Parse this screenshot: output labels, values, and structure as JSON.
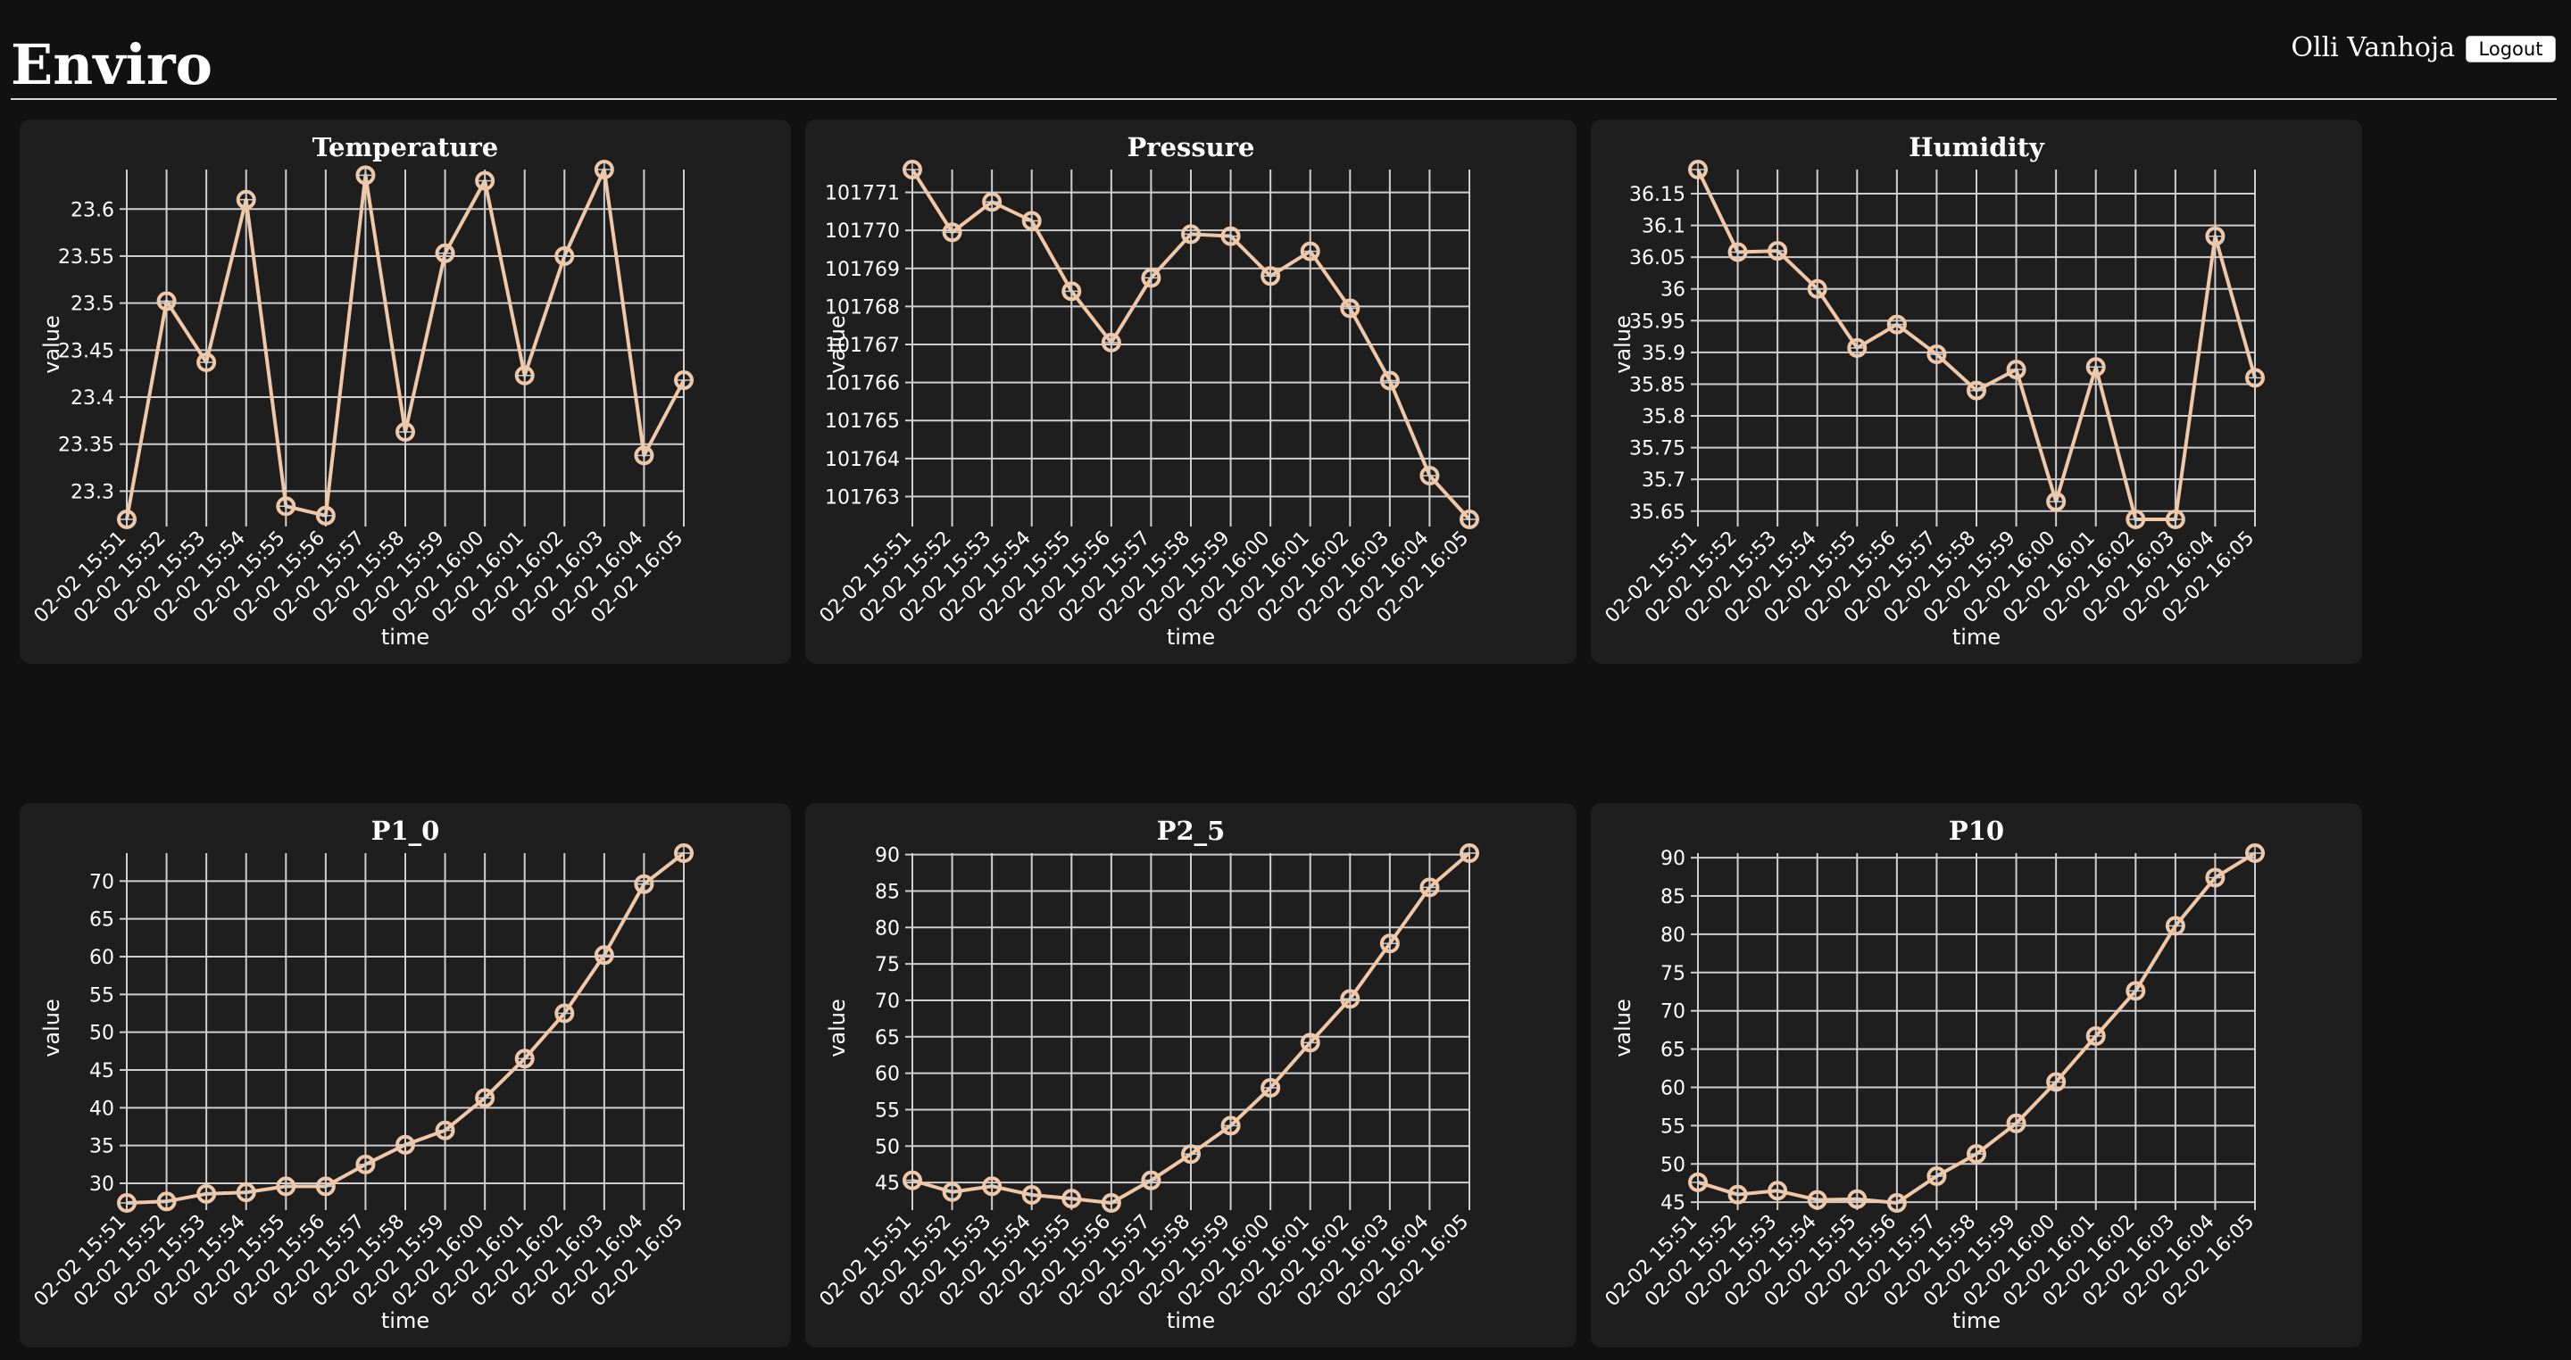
{
  "header": {
    "title": "Enviro",
    "user_name": "Olli Vanhoja",
    "logout_label": "Logout"
  },
  "chart_style": {
    "line_color": "#f0c8a8",
    "grid_color": "#cfcfcf",
    "card_color": "#1e1e1e",
    "background": "#111111"
  },
  "chart_data": [
    {
      "type": "line",
      "title": "Temperature",
      "xlabel": "time",
      "ylabel": "value",
      "categories": [
        "02-02 15:51",
        "02-02 15:52",
        "02-02 15:53",
        "02-02 15:54",
        "02-02 15:55",
        "02-02 15:56",
        "02-02 15:57",
        "02-02 15:58",
        "02-02 15:59",
        "02-02 16:00",
        "02-02 16:01",
        "02-02 16:02",
        "02-02 16:03",
        "02-02 16:04",
        "02-02 16:05"
      ],
      "values": [
        23.27,
        23.502,
        23.437,
        23.61,
        23.284,
        23.274,
        23.636,
        23.363,
        23.553,
        23.63,
        23.423,
        23.55,
        23.642,
        23.338,
        23.418
      ],
      "ylim": [
        23.27,
        23.642
      ],
      "yticks": [
        23.3,
        23.35,
        23.4,
        23.45,
        23.5,
        23.55,
        23.6
      ],
      "ytick_labels": [
        "23.3",
        "23.35",
        "23.4",
        "23.45",
        "23.5",
        "23.55",
        "23.6"
      ],
      "grid": true
    },
    {
      "type": "line",
      "title": "Pressure",
      "xlabel": "time",
      "ylabel": "value",
      "categories": [
        "02-02 15:51",
        "02-02 15:52",
        "02-02 15:53",
        "02-02 15:54",
        "02-02 15:55",
        "02-02 15:56",
        "02-02 15:57",
        "02-02 15:58",
        "02-02 15:59",
        "02-02 16:00",
        "02-02 16:01",
        "02-02 16:02",
        "02-02 16:03",
        "02-02 16:04",
        "02-02 16:05"
      ],
      "values": [
        101771.6,
        101769.95,
        101770.75,
        101770.25,
        101768.4,
        101767.05,
        101768.75,
        101769.9,
        101769.85,
        101768.8,
        101769.45,
        101767.95,
        101766.05,
        101763.55,
        101762.4
      ],
      "ylim": [
        101762.4,
        101771.6
      ],
      "yticks": [
        101763,
        101764,
        101765,
        101766,
        101767,
        101768,
        101769,
        101770,
        101771
      ],
      "ytick_labels": [
        "101763",
        "101764",
        "101765",
        "101766",
        "101767",
        "101768",
        "101769",
        "101770",
        "101771"
      ],
      "grid": true
    },
    {
      "type": "line",
      "title": "Humidity",
      "xlabel": "time",
      "ylabel": "value",
      "categories": [
        "02-02 15:51",
        "02-02 15:52",
        "02-02 15:53",
        "02-02 15:54",
        "02-02 15:55",
        "02-02 15:56",
        "02-02 15:57",
        "02-02 15:58",
        "02-02 15:59",
        "02-02 16:00",
        "02-02 16:01",
        "02-02 16:02",
        "02-02 16:03",
        "02-02 16:04",
        "02-02 16:05"
      ],
      "values": [
        36.188,
        36.058,
        36.06,
        36.0,
        35.907,
        35.944,
        35.897,
        35.84,
        35.873,
        35.665,
        35.877,
        35.637,
        35.637,
        36.083,
        35.86
      ],
      "ylim": [
        35.637,
        36.188
      ],
      "yticks": [
        35.65,
        35.7,
        35.75,
        35.8,
        35.85,
        35.9,
        35.95,
        36.0,
        36.05,
        36.1,
        36.15
      ],
      "ytick_labels": [
        "35.65",
        "35.7",
        "35.75",
        "35.8",
        "35.85",
        "35.9",
        "35.95",
        "36",
        "36.05",
        "36.1",
        "36.15"
      ],
      "grid": true
    },
    {
      "type": "line",
      "title": "P1_0",
      "xlabel": "time",
      "ylabel": "value",
      "categories": [
        "02-02 15:51",
        "02-02 15:52",
        "02-02 15:53",
        "02-02 15:54",
        "02-02 15:55",
        "02-02 15:56",
        "02-02 15:57",
        "02-02 15:58",
        "02-02 15:59",
        "02-02 16:00",
        "02-02 16:01",
        "02-02 16:02",
        "02-02 16:03",
        "02-02 16:04",
        "02-02 16:05"
      ],
      "values": [
        27.4,
        27.6,
        28.6,
        28.8,
        29.6,
        29.6,
        32.5,
        35.1,
        37.0,
        41.3,
        46.5,
        52.5,
        60.2,
        69.6,
        73.7
      ],
      "ylim": [
        27.4,
        73.7
      ],
      "yticks": [
        30,
        35,
        40,
        45,
        50,
        55,
        60,
        65,
        70
      ],
      "ytick_labels": [
        "30",
        "35",
        "40",
        "45",
        "50",
        "55",
        "60",
        "65",
        "70"
      ],
      "grid": true
    },
    {
      "type": "line",
      "title": "P2_5",
      "xlabel": "time",
      "ylabel": "value",
      "categories": [
        "02-02 15:51",
        "02-02 15:52",
        "02-02 15:53",
        "02-02 15:54",
        "02-02 15:55",
        "02-02 15:56",
        "02-02 15:57",
        "02-02 15:58",
        "02-02 15:59",
        "02-02 16:00",
        "02-02 16:01",
        "02-02 16:02",
        "02-02 16:03",
        "02-02 16:04",
        "02-02 16:05"
      ],
      "values": [
        45.3,
        43.7,
        44.5,
        43.3,
        42.8,
        42.2,
        45.3,
        48.9,
        52.8,
        58.0,
        64.2,
        70.2,
        77.8,
        85.5,
        90.2
      ],
      "ylim": [
        42.2,
        90.2
      ],
      "yticks": [
        45,
        50,
        55,
        60,
        65,
        70,
        75,
        80,
        85,
        90
      ],
      "ytick_labels": [
        "45",
        "50",
        "55",
        "60",
        "65",
        "70",
        "75",
        "80",
        "85",
        "90"
      ],
      "grid": true
    },
    {
      "type": "line",
      "title": "P10",
      "xlabel": "time",
      "ylabel": "value",
      "categories": [
        "02-02 15:51",
        "02-02 15:52",
        "02-02 15:53",
        "02-02 15:54",
        "02-02 15:55",
        "02-02 15:56",
        "02-02 15:57",
        "02-02 15:58",
        "02-02 15:59",
        "02-02 16:00",
        "02-02 16:01",
        "02-02 16:02",
        "02-02 16:03",
        "02-02 16:04",
        "02-02 16:05"
      ],
      "values": [
        47.6,
        46.0,
        46.5,
        45.3,
        45.4,
        44.9,
        48.4,
        51.3,
        55.3,
        60.7,
        66.7,
        72.6,
        81.1,
        87.4,
        90.6
      ],
      "ylim": [
        44.9,
        90.6
      ],
      "yticks": [
        45,
        50,
        55,
        60,
        65,
        70,
        75,
        80,
        85,
        90
      ],
      "ytick_labels": [
        "45",
        "50",
        "55",
        "60",
        "65",
        "70",
        "75",
        "80",
        "85",
        "90"
      ],
      "grid": true
    }
  ]
}
